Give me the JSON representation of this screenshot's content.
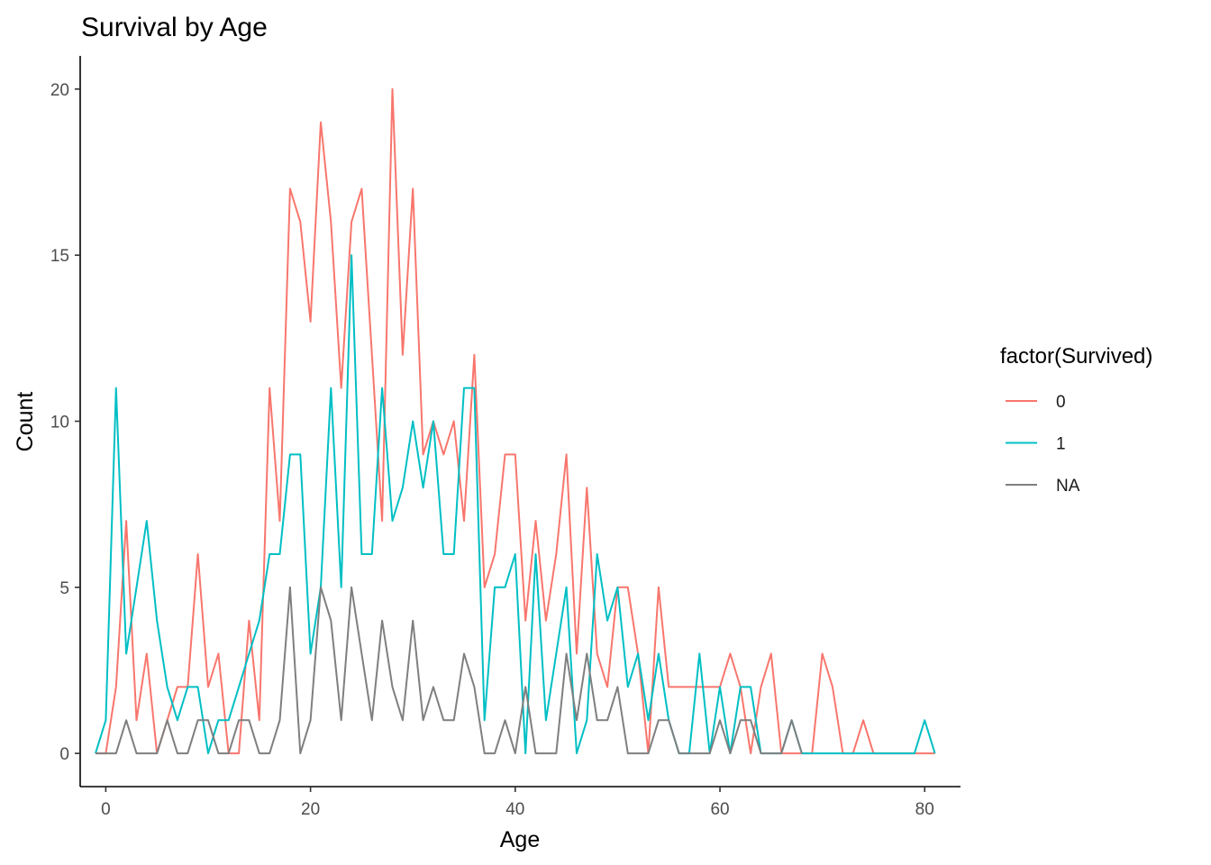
{
  "chart_data": {
    "type": "line",
    "title": "Survival by Age",
    "xlabel": "Age",
    "ylabel": "Count",
    "xlim": [
      -2.5,
      83.5
    ],
    "ylim": [
      -1,
      21
    ],
    "xticks": [
      0,
      20,
      40,
      60,
      80
    ],
    "yticks": [
      0,
      5,
      10,
      15,
      20
    ],
    "grid": false,
    "legend": {
      "title": "factor(Survived)",
      "position": "right"
    },
    "series": [
      {
        "name": "0",
        "color": "#F8766D",
        "points": [
          [
            -1,
            0
          ],
          [
            0,
            0
          ],
          [
            1,
            2
          ],
          [
            2,
            7
          ],
          [
            3,
            1
          ],
          [
            4,
            3
          ],
          [
            5,
            0
          ],
          [
            6,
            1
          ],
          [
            7,
            2
          ],
          [
            8,
            2
          ],
          [
            9,
            6
          ],
          [
            10,
            2
          ],
          [
            11,
            3
          ],
          [
            12,
            0
          ],
          [
            13,
            0
          ],
          [
            14,
            4
          ],
          [
            15,
            1
          ],
          [
            16,
            11
          ],
          [
            17,
            7
          ],
          [
            18,
            17
          ],
          [
            19,
            16
          ],
          [
            20,
            13
          ],
          [
            21,
            19
          ],
          [
            22,
            16
          ],
          [
            23,
            11
          ],
          [
            24,
            16
          ],
          [
            25,
            17
          ],
          [
            26,
            12
          ],
          [
            27,
            7
          ],
          [
            28,
            20
          ],
          [
            29,
            12
          ],
          [
            30,
            17
          ],
          [
            31,
            9
          ],
          [
            32,
            10
          ],
          [
            33,
            9
          ],
          [
            34,
            10
          ],
          [
            35,
            7
          ],
          [
            36,
            12
          ],
          [
            37,
            5
          ],
          [
            38,
            6
          ],
          [
            39,
            9
          ],
          [
            40,
            9
          ],
          [
            41,
            4
          ],
          [
            42,
            7
          ],
          [
            43,
            4
          ],
          [
            44,
            6
          ],
          [
            45,
            9
          ],
          [
            46,
            3
          ],
          [
            47,
            8
          ],
          [
            48,
            3
          ],
          [
            49,
            2
          ],
          [
            50,
            5
          ],
          [
            51,
            5
          ],
          [
            52,
            3
          ],
          [
            53,
            0
          ],
          [
            54,
            5
          ],
          [
            55,
            2
          ],
          [
            56,
            2
          ],
          [
            57,
            2
          ],
          [
            58,
            2
          ],
          [
            59,
            2
          ],
          [
            60,
            2
          ],
          [
            61,
            3
          ],
          [
            62,
            2
          ],
          [
            63,
            0
          ],
          [
            64,
            2
          ],
          [
            65,
            3
          ],
          [
            66,
            0
          ],
          [
            67,
            0
          ],
          [
            68,
            0
          ],
          [
            69,
            0
          ],
          [
            70,
            3
          ],
          [
            71,
            2
          ],
          [
            72,
            0
          ],
          [
            73,
            0
          ],
          [
            74,
            1
          ],
          [
            75,
            0
          ],
          [
            76,
            0
          ],
          [
            77,
            0
          ],
          [
            78,
            0
          ],
          [
            79,
            0
          ],
          [
            80,
            0
          ],
          [
            81,
            0
          ]
        ]
      },
      {
        "name": "1",
        "color": "#00BFC4",
        "points": [
          [
            -1,
            0
          ],
          [
            0,
            1
          ],
          [
            1,
            11
          ],
          [
            2,
            3
          ],
          [
            3,
            5
          ],
          [
            4,
            7
          ],
          [
            5,
            4
          ],
          [
            6,
            2
          ],
          [
            7,
            1
          ],
          [
            8,
            2
          ],
          [
            9,
            2
          ],
          [
            10,
            0
          ],
          [
            11,
            1
          ],
          [
            12,
            1
          ],
          [
            13,
            2
          ],
          [
            14,
            3
          ],
          [
            15,
            4
          ],
          [
            16,
            6
          ],
          [
            17,
            6
          ],
          [
            18,
            9
          ],
          [
            19,
            9
          ],
          [
            20,
            3
          ],
          [
            21,
            5
          ],
          [
            22,
            11
          ],
          [
            23,
            5
          ],
          [
            24,
            15
          ],
          [
            25,
            6
          ],
          [
            26,
            6
          ],
          [
            27,
            11
          ],
          [
            28,
            7
          ],
          [
            29,
            8
          ],
          [
            30,
            10
          ],
          [
            31,
            8
          ],
          [
            32,
            10
          ],
          [
            33,
            6
          ],
          [
            34,
            6
          ],
          [
            35,
            11
          ],
          [
            36,
            11
          ],
          [
            37,
            1
          ],
          [
            38,
            5
          ],
          [
            39,
            5
          ],
          [
            40,
            6
          ],
          [
            41,
            0
          ],
          [
            42,
            6
          ],
          [
            43,
            1
          ],
          [
            44,
            3
          ],
          [
            45,
            5
          ],
          [
            46,
            0
          ],
          [
            47,
            1
          ],
          [
            48,
            6
          ],
          [
            49,
            4
          ],
          [
            50,
            5
          ],
          [
            51,
            2
          ],
          [
            52,
            3
          ],
          [
            53,
            1
          ],
          [
            54,
            3
          ],
          [
            55,
            1
          ],
          [
            56,
            0
          ],
          [
            57,
            0
          ],
          [
            58,
            3
          ],
          [
            59,
            0
          ],
          [
            60,
            2
          ],
          [
            61,
            0
          ],
          [
            62,
            2
          ],
          [
            63,
            2
          ],
          [
            64,
            0
          ],
          [
            65,
            0
          ],
          [
            66,
            0
          ],
          [
            67,
            1
          ],
          [
            68,
            0
          ],
          [
            69,
            0
          ],
          [
            70,
            0
          ],
          [
            71,
            0
          ],
          [
            72,
            0
          ],
          [
            73,
            0
          ],
          [
            74,
            0
          ],
          [
            75,
            0
          ],
          [
            76,
            0
          ],
          [
            77,
            0
          ],
          [
            78,
            0
          ],
          [
            79,
            0
          ],
          [
            80,
            1
          ],
          [
            81,
            0
          ]
        ]
      },
      {
        "name": "NA",
        "color": "#7F7F7F",
        "points": [
          [
            -1,
            0
          ],
          [
            0,
            0
          ],
          [
            1,
            0
          ],
          [
            2,
            1
          ],
          [
            3,
            0
          ],
          [
            4,
            0
          ],
          [
            5,
            0
          ],
          [
            6,
            1
          ],
          [
            7,
            0
          ],
          [
            8,
            0
          ],
          [
            9,
            1
          ],
          [
            10,
            1
          ],
          [
            11,
            0
          ],
          [
            12,
            0
          ],
          [
            13,
            1
          ],
          [
            14,
            1
          ],
          [
            15,
            0
          ],
          [
            16,
            0
          ],
          [
            17,
            1
          ],
          [
            18,
            5
          ],
          [
            19,
            0
          ],
          [
            20,
            1
          ],
          [
            21,
            5
          ],
          [
            22,
            4
          ],
          [
            23,
            1
          ],
          [
            24,
            5
          ],
          [
            25,
            3
          ],
          [
            26,
            1
          ],
          [
            27,
            4
          ],
          [
            28,
            2
          ],
          [
            29,
            1
          ],
          [
            30,
            4
          ],
          [
            31,
            1
          ],
          [
            32,
            2
          ],
          [
            33,
            1
          ],
          [
            34,
            1
          ],
          [
            35,
            3
          ],
          [
            36,
            2
          ],
          [
            37,
            0
          ],
          [
            38,
            0
          ],
          [
            39,
            1
          ],
          [
            40,
            0
          ],
          [
            41,
            2
          ],
          [
            42,
            0
          ],
          [
            43,
            0
          ],
          [
            44,
            0
          ],
          [
            45,
            3
          ],
          [
            46,
            1
          ],
          [
            47,
            3
          ],
          [
            48,
            1
          ],
          [
            49,
            1
          ],
          [
            50,
            2
          ],
          [
            51,
            0
          ],
          [
            52,
            0
          ],
          [
            53,
            0
          ],
          [
            54,
            1
          ],
          [
            55,
            1
          ],
          [
            56,
            0
          ],
          [
            57,
            0
          ],
          [
            58,
            0
          ],
          [
            59,
            0
          ],
          [
            60,
            1
          ],
          [
            61,
            0
          ],
          [
            62,
            1
          ],
          [
            63,
            1
          ],
          [
            64,
            0
          ],
          [
            65,
            0
          ],
          [
            66,
            0
          ],
          [
            67,
            1
          ],
          [
            68,
            0
          ]
        ]
      }
    ]
  }
}
